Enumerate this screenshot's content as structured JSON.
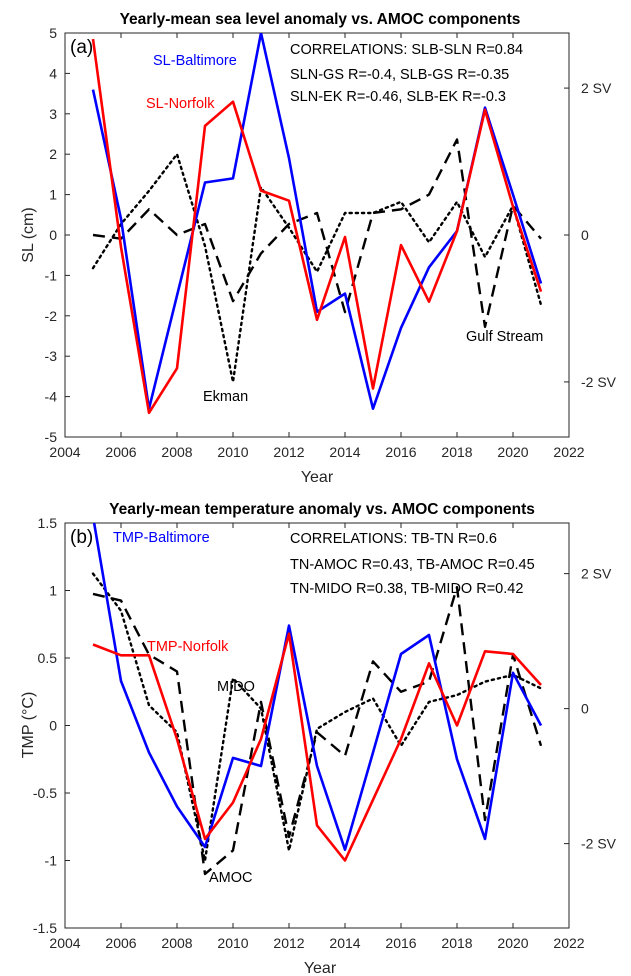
{
  "chart_data": [
    {
      "type": "line",
      "panel_label": "(a)",
      "title": "Yearly-mean sea level anomaly vs. AMOC components",
      "xlabel": "Year",
      "ylabel": "SL (cm)",
      "xlim": [
        2004,
        2022
      ],
      "ylim": [
        -5,
        5
      ],
      "xticks": [
        2004,
        2006,
        2008,
        2010,
        2012,
        2014,
        2016,
        2018,
        2020,
        2022
      ],
      "yticks": [
        -5,
        -4,
        -3,
        -2,
        -1,
        0,
        1,
        2,
        3,
        4,
        5
      ],
      "y2ticks": [
        {
          "value": 2,
          "label": "2 SV"
        },
        {
          "value": 0,
          "label": "0"
        },
        {
          "value": -2,
          "label": "-2 SV"
        }
      ],
      "y2lim": [
        -2.75,
        2.75
      ],
      "grid": false,
      "annotations": [
        "CORRELATIONS: SLB-SLN R=0.84",
        "SLN-GS R=-0.4, SLB-GS R=-0.35",
        "SLN-EK R=-0.46, SLB-EK R=-0.3"
      ],
      "series": [
        {
          "name": "SL-Baltimore",
          "axis": "left",
          "color": "#0000ff",
          "style": "solid",
          "x": [
            2005,
            2006,
            2007,
            2008,
            2009,
            2010,
            2011,
            2012,
            2013,
            2014,
            2015,
            2016,
            2017,
            2018,
            2019,
            2020,
            2021
          ],
          "values": [
            3.6,
            0.4,
            -4.3,
            -1.5,
            1.3,
            1.4,
            5.0,
            1.9,
            -1.9,
            -1.45,
            -4.3,
            -2.3,
            -0.8,
            0.1,
            3.15,
            1.0,
            -1.2
          ]
        },
        {
          "name": "SL-Norfolk",
          "axis": "left",
          "color": "#ff0000",
          "style": "solid",
          "x": [
            2005,
            2006,
            2007,
            2008,
            2009,
            2010,
            2011,
            2012,
            2013,
            2014,
            2015,
            2016,
            2017,
            2018,
            2019,
            2020,
            2021
          ],
          "values": [
            4.85,
            -0.3,
            -4.4,
            -3.3,
            2.7,
            3.3,
            1.1,
            0.85,
            -2.1,
            -0.05,
            -3.8,
            -0.25,
            -1.65,
            0.1,
            3.1,
            0.7,
            -1.4
          ]
        },
        {
          "name": "Gulf Stream",
          "axis": "right",
          "color": "#000000",
          "style": "dashed",
          "x": [
            2005,
            2006,
            2007,
            2008,
            2009,
            2010,
            2011,
            2012,
            2013,
            2014,
            2015,
            2016,
            2017,
            2018,
            2019,
            2020,
            2021
          ],
          "values": [
            0,
            -0.05,
            0.35,
            0,
            0.15,
            -0.9,
            -0.25,
            0.15,
            0.3,
            -1.05,
            0.3,
            0.35,
            0.55,
            1.3,
            -1.25,
            0.4,
            -0.05
          ]
        },
        {
          "name": "Ekman",
          "axis": "right",
          "color": "#000000",
          "style": "dotted",
          "x": [
            2005,
            2006,
            2007,
            2008,
            2009,
            2010,
            2011,
            2012,
            2013,
            2014,
            2015,
            2016,
            2017,
            2018,
            2019,
            2020,
            2021
          ],
          "values": [
            -0.45,
            0.15,
            0.6,
            1.1,
            -0.15,
            -2.0,
            0.65,
            0.1,
            -0.5,
            0.3,
            0.3,
            0.45,
            -0.1,
            0.45,
            -0.3,
            0.4,
            -0.95
          ]
        }
      ],
      "labels": [
        {
          "text": "SL-Baltimore",
          "color": "#0000ff"
        },
        {
          "text": "SL-Norfolk",
          "color": "#ff0000"
        },
        {
          "text": "Gulf Stream",
          "color": "#000000"
        },
        {
          "text": "Ekman",
          "color": "#000000"
        }
      ]
    },
    {
      "type": "line",
      "panel_label": "(b)",
      "title": "Yearly-mean temperature anomaly vs. AMOC components",
      "xlabel": "Year",
      "ylabel": "TMP (°C)",
      "xlim": [
        2004,
        2022
      ],
      "ylim": [
        -1.5,
        1.5
      ],
      "xticks": [
        2004,
        2006,
        2008,
        2010,
        2012,
        2014,
        2016,
        2018,
        2020,
        2022
      ],
      "yticks": [
        -1.5,
        -1,
        -0.5,
        0,
        0.5,
        1,
        1.5
      ],
      "y2ticks": [
        {
          "value": 2,
          "label": "2 SV"
        },
        {
          "value": 0,
          "label": "0"
        },
        {
          "value": -2,
          "label": "-2 SV"
        }
      ],
      "y2lim": [
        -3.25,
        2.75
      ],
      "grid": false,
      "annotations": [
        "CORRELATIONS: TB-TN R=0.6",
        "TN-AMOC R=0.43, TB-AMOC R=0.45",
        "TN-MIDO R=0.38, TB-MIDO R=0.42"
      ],
      "series": [
        {
          "name": "TMP-Baltimore",
          "axis": "left",
          "color": "#0000ff",
          "style": "solid",
          "x": [
            2005,
            2006,
            2007,
            2008,
            2009,
            2010,
            2011,
            2012,
            2013,
            2014,
            2015,
            2016,
            2017,
            2018,
            2019,
            2020,
            2021
          ],
          "values": [
            1.55,
            0.33,
            -0.2,
            -0.6,
            -0.9,
            -0.24,
            -0.3,
            0.74,
            -0.3,
            -0.92,
            -0.2,
            0.53,
            0.67,
            -0.25,
            -0.84,
            0.39,
            0.0
          ]
        },
        {
          "name": "TMP-Norfolk",
          "axis": "left",
          "color": "#ff0000",
          "style": "solid",
          "x": [
            2005,
            2006,
            2007,
            2008,
            2009,
            2010,
            2011,
            2012,
            2013,
            2014,
            2015,
            2016,
            2017,
            2018,
            2019,
            2020,
            2021
          ],
          "values": [
            0.6,
            0.52,
            0.52,
            -0.1,
            -0.84,
            -0.57,
            -0.1,
            0.68,
            -0.74,
            -1.0,
            -0.55,
            -0.1,
            0.46,
            0.0,
            0.55,
            0.53,
            0.3
          ]
        },
        {
          "name": "AMOC",
          "axis": "right",
          "color": "#000000",
          "style": "dashed",
          "x": [
            2005,
            2006,
            2007,
            2008,
            2009,
            2010,
            2011,
            2012,
            2013,
            2014,
            2015,
            2016,
            2017,
            2018,
            2019,
            2020,
            2021
          ],
          "values": [
            1.7,
            1.6,
            0.8,
            0.55,
            -2.45,
            -2.1,
            0.1,
            -1.9,
            -0.35,
            -0.7,
            0.7,
            0.25,
            0.4,
            1.8,
            -1.65,
            0.8,
            -0.55
          ]
        },
        {
          "name": "MIDO",
          "axis": "right",
          "color": "#000000",
          "style": "dotted",
          "x": [
            2005,
            2006,
            2007,
            2008,
            2009,
            2010,
            2011,
            2012,
            2013,
            2014,
            2015,
            2016,
            2017,
            2018,
            2019,
            2020,
            2021
          ],
          "values": [
            2.0,
            1.45,
            0.05,
            -0.35,
            -2.25,
            0.45,
            0.0,
            -2.1,
            -0.3,
            -0.05,
            0.15,
            -0.55,
            0.1,
            0.2,
            0.4,
            0.5,
            0.3
          ]
        }
      ],
      "labels": [
        {
          "text": "TMP-Baltimore",
          "color": "#0000ff"
        },
        {
          "text": "TMP-Norfolk",
          "color": "#ff0000"
        },
        {
          "text": "MIDO",
          "color": "#000000"
        },
        {
          "text": "AMOC",
          "color": "#000000"
        }
      ]
    }
  ]
}
